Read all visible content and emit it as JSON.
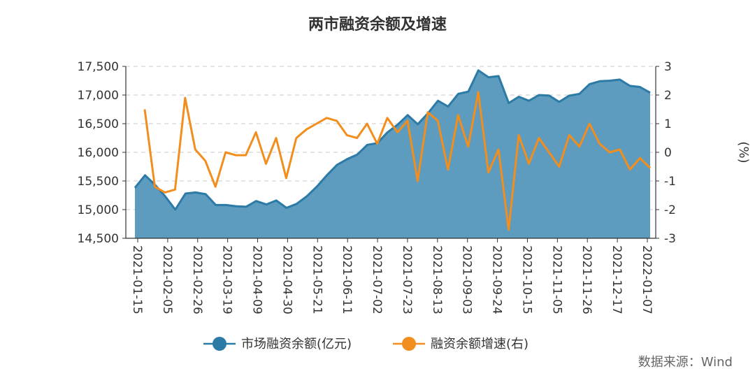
{
  "chart_data": {
    "type": "line",
    "title": "两市融资余额及增速",
    "source": "数据来源：Wind",
    "x_tick_labels": [
      "2021-01-15",
      "2021-02-05",
      "2021-02-26",
      "2021-03-19",
      "2021-04-09",
      "2021-04-30",
      "2021-05-21",
      "2021-06-11",
      "2021-07-02",
      "2021-07-23",
      "2021-08-13",
      "2021-09-03",
      "2021-09-24",
      "2021-10-15",
      "2021-11-05",
      "2021-11-26",
      "2021-12-17",
      "2022-01-07"
    ],
    "y_left": {
      "ylim": [
        14500,
        17500
      ],
      "ticks": [
        "14,500",
        "15,000",
        "15,500",
        "16,000",
        "16,500",
        "17,000",
        "17,500"
      ]
    },
    "y_right": {
      "ylim": [
        -3,
        3
      ],
      "ticks": [
        "-3",
        "-2",
        "-1",
        "0",
        "1",
        "2",
        "3"
      ],
      "label": "(%)"
    },
    "colors": {
      "balance": "#2c7aa6",
      "balance_fill": "#5d9bbf",
      "growth": "#f28e1e"
    },
    "series": [
      {
        "name": "市场融资余额(亿元)",
        "axis": "left",
        "render": "area",
        "values": [
          15380,
          15600,
          15430,
          15230,
          15000,
          15280,
          15300,
          15270,
          15080,
          15080,
          15060,
          15050,
          15150,
          15090,
          15160,
          15030,
          15100,
          15230,
          15400,
          15600,
          15780,
          15880,
          15960,
          16130,
          16160,
          16350,
          16480,
          16650,
          16490,
          16680,
          16900,
          16800,
          17020,
          17060,
          17430,
          17310,
          17330,
          16860,
          16970,
          16900,
          17000,
          16990,
          16880,
          16990,
          17020,
          17190,
          17240,
          17250,
          17270,
          17160,
          17140,
          17040
        ]
      },
      {
        "name": "融资余额增速(右)",
        "axis": "right",
        "render": "line",
        "values": [
          1.5,
          -1.2,
          -1.4,
          -1.3,
          1.9,
          0.1,
          -0.3,
          -1.2,
          0.0,
          -0.1,
          -0.1,
          0.7,
          -0.4,
          0.5,
          -0.9,
          0.5,
          0.8,
          1.0,
          1.2,
          1.1,
          0.6,
          0.5,
          1.0,
          0.3,
          1.2,
          0.7,
          1.1,
          -1.0,
          1.4,
          1.1,
          -0.6,
          1.3,
          0.2,
          2.1,
          -0.7,
          0.1,
          -2.7,
          0.6,
          -0.4,
          0.5,
          0.0,
          -0.5,
          0.6,
          0.2,
          1.0,
          0.3,
          0.0,
          0.1,
          -0.6,
          -0.2,
          -0.55
        ]
      }
    ]
  }
}
